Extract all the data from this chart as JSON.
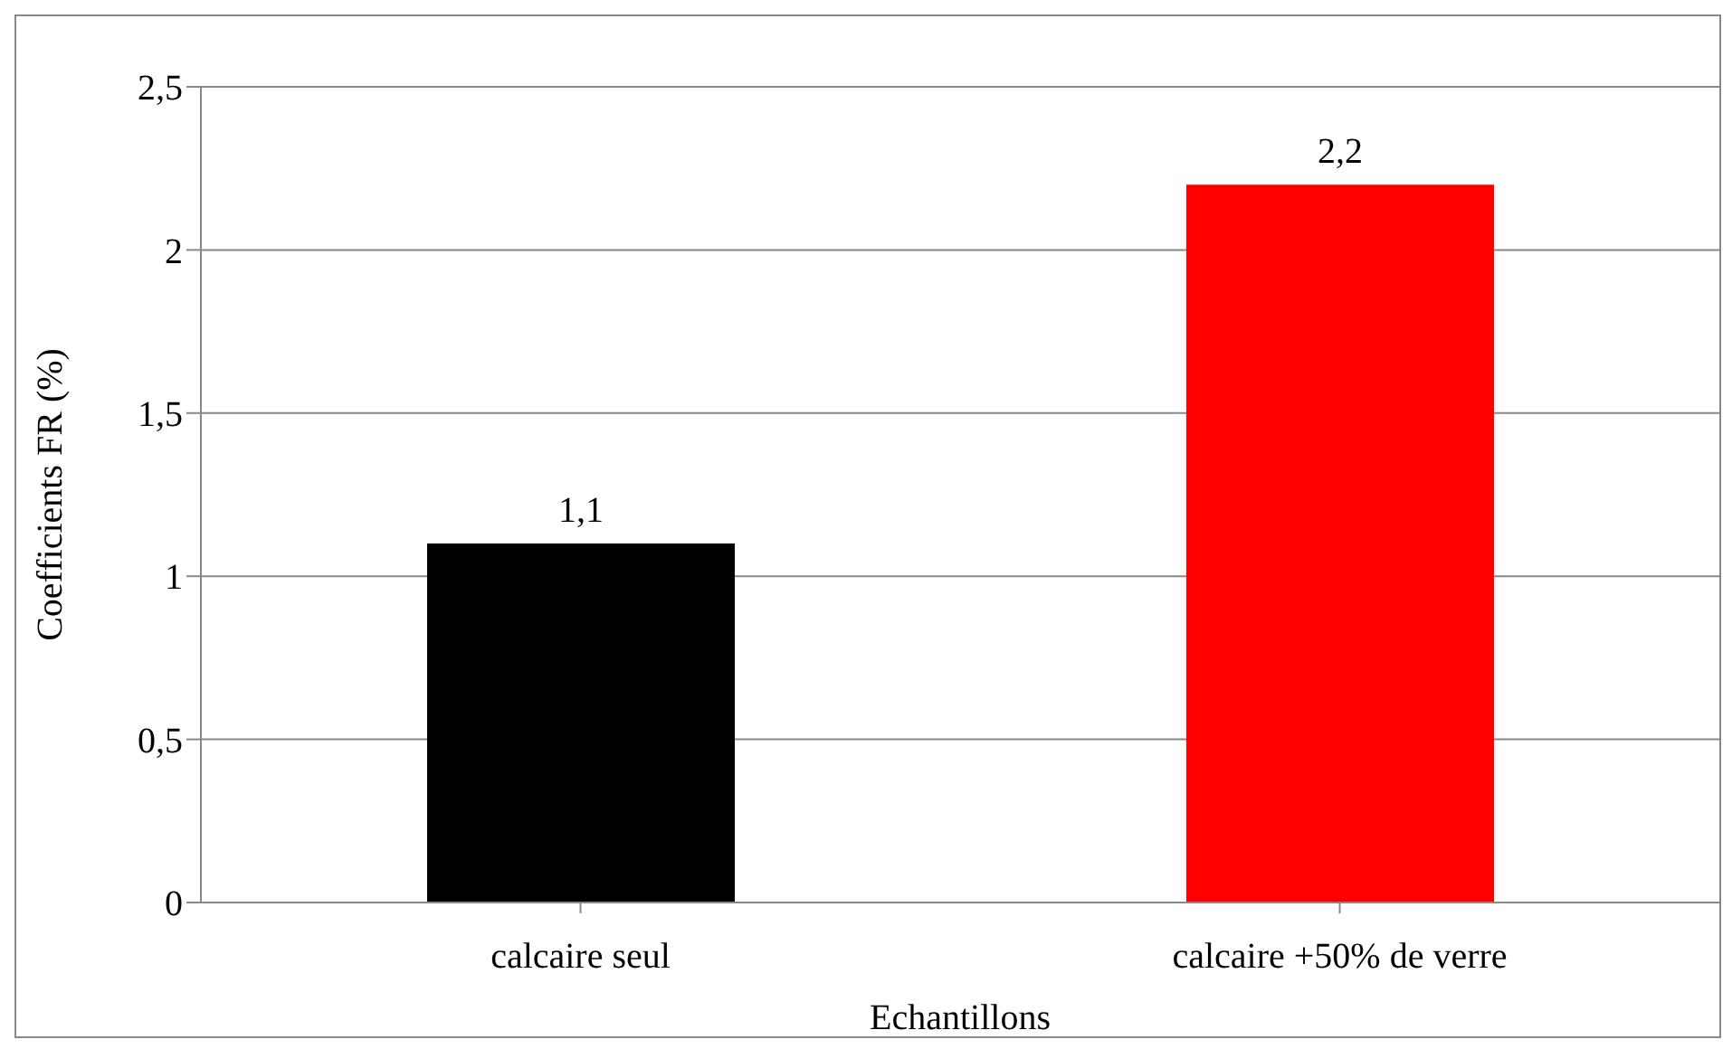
{
  "chart_data": {
    "type": "bar",
    "xlabel": "Echantillons",
    "ylabel": "Coefficients  FR (%)",
    "categories": [
      "calcaire seul",
      "calcaire +50% de verre"
    ],
    "values": [
      1.1,
      2.2
    ],
    "colors": [
      "#000000",
      "#ff0000"
    ],
    "value_labels": [
      "1,1",
      "2,2"
    ],
    "ylim": [
      0,
      2.5
    ],
    "yticks": [
      0,
      {
        "value": 0.5,
        "label": "0,5"
      },
      1,
      {
        "value": 1.5,
        "label": "1,5"
      },
      2,
      {
        "value": 2.5,
        "label": "2,5"
      }
    ],
    "grid": "y",
    "legend": false
  }
}
